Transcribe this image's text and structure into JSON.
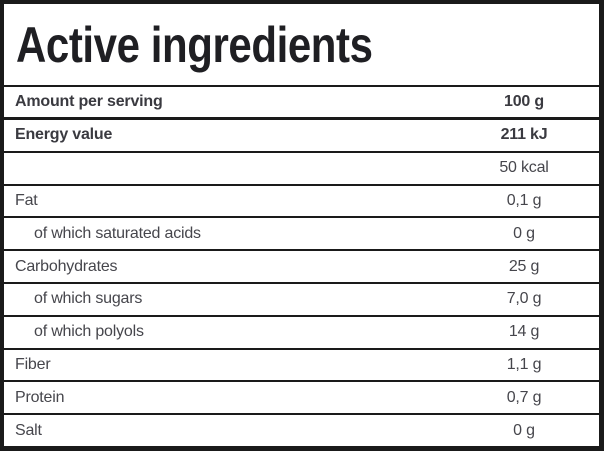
{
  "title": "Active ingredients",
  "serving_header": {
    "label": "Amount per serving",
    "value": "100 g"
  },
  "table": {
    "rows": [
      {
        "label": "Energy value",
        "value": "211 kJ"
      },
      {
        "label": "",
        "value": "50 kcal"
      },
      {
        "label": "Fat",
        "value": "0,1 g"
      },
      {
        "label": "of which saturated acids",
        "value": "0 g"
      },
      {
        "label": "Carbohydrates",
        "value": "25 g"
      },
      {
        "label": "of which sugars",
        "value": "7,0 g"
      },
      {
        "label": "of which polyols",
        "value": "14 g"
      },
      {
        "label": "Fiber",
        "value": "1,1 g"
      },
      {
        "label": "Protein",
        "value": "0,7 g"
      },
      {
        "label": "Salt",
        "value": "0 g"
      }
    ]
  },
  "colors": {
    "border": "#1a1a1a",
    "title_text": "#1f1f23",
    "label_text": "#46464c",
    "bold_text": "#3a3a40",
    "background": "#ffffff"
  }
}
